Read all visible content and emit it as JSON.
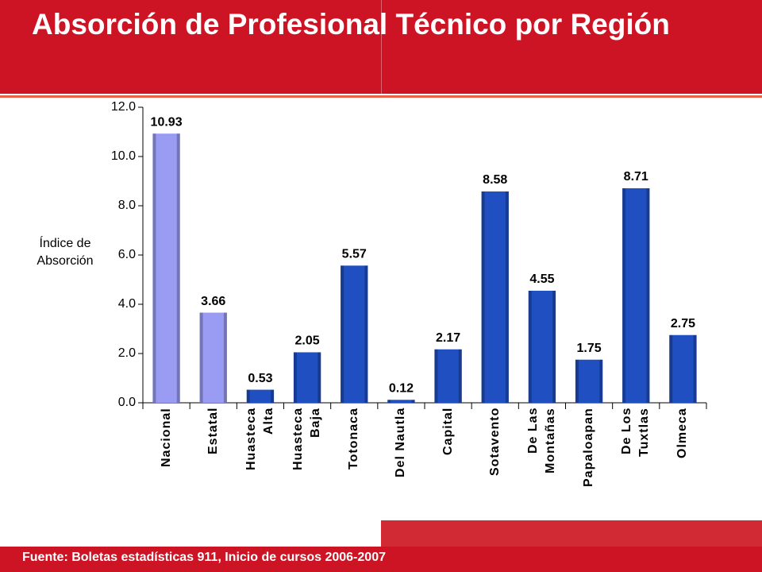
{
  "chart_data": {
    "type": "bar",
    "title": "Absorción de Profesional Técnico por Región",
    "y_label": "Índice de Absorción",
    "source": "Fuente: Boletas estadísticas 911, Inicio de cursos 2006-2007",
    "categories": [
      "Nacional",
      "Estatal",
      "Huasteca\nAlta",
      "Huasteca\nBaja",
      "Totonaca",
      "Del Nautla",
      "Capital",
      "Sotavento",
      "De Las\nMontañas",
      "Papaloapan",
      "De Los\nTuxtlas",
      "Olmeca"
    ],
    "values": [
      10.93,
      3.66,
      0.53,
      2.05,
      5.57,
      0.12,
      2.17,
      8.58,
      4.55,
      1.75,
      8.71,
      2.75
    ],
    "colors": [
      "#9a9cf4",
      "#9a9cf4",
      "#1f4fc0",
      "#1f4fc0",
      "#1f4fc0",
      "#1f4fc0",
      "#1f4fc0",
      "#1f4fc0",
      "#1f4fc0",
      "#1f4fc0",
      "#1f4fc0",
      "#1f4fc0"
    ],
    "ylim": [
      0,
      12
    ],
    "yticks": [
      {
        "value": 0,
        "label": "0.0"
      },
      {
        "value": 2,
        "label": "2.0"
      },
      {
        "value": 4,
        "label": "4.0"
      },
      {
        "value": 6,
        "label": "6.0"
      },
      {
        "value": 8,
        "label": "8.0"
      },
      {
        "value": 10,
        "label": "10.0"
      },
      {
        "value": 12,
        "label": "12.0"
      }
    ],
    "grid": false
  }
}
